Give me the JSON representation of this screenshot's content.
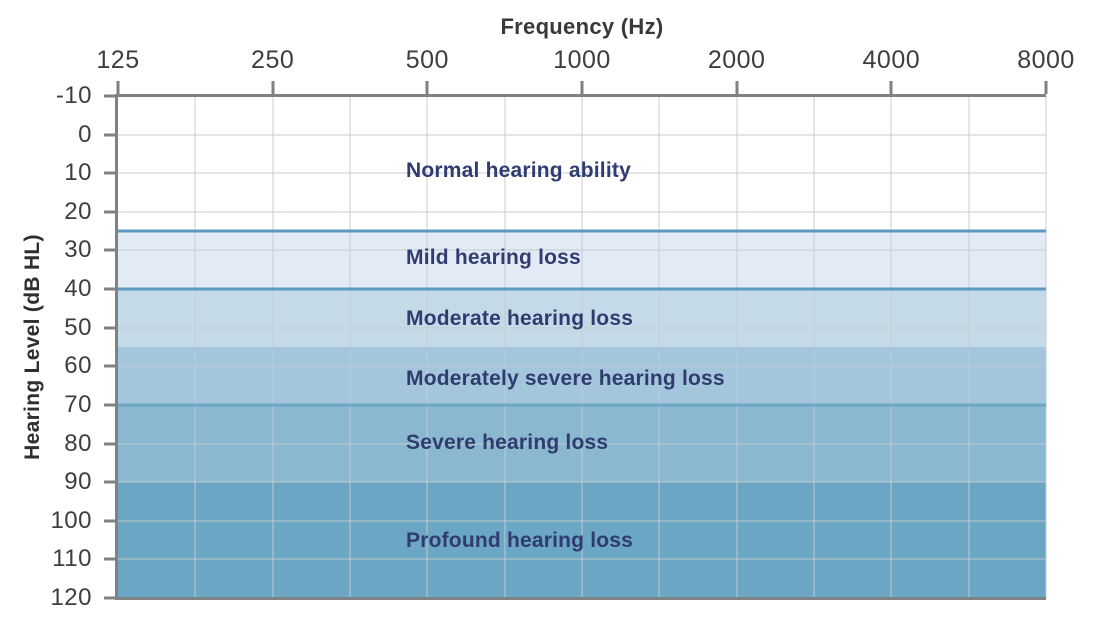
{
  "chart_data": {
    "type": "area",
    "xlabel": "Frequency (Hz)",
    "ylabel": "Hearing Level (dB HL)",
    "x_scale": "logarithmic (octaves), minor gridline every half octave",
    "x_ticks": [
      {
        "label": "125",
        "octave": 0
      },
      {
        "label": "250",
        "octave": 1
      },
      {
        "label": "500",
        "octave": 2
      },
      {
        "label": "1000",
        "octave": 3
      },
      {
        "label": "2000",
        "octave": 4
      },
      {
        "label": "4000",
        "octave": 5
      },
      {
        "label": "8000",
        "octave": 6
      }
    ],
    "x_octaves": 6,
    "x_grid_divisions": 12,
    "y_ticks": [
      "-10",
      "0",
      "10",
      "20",
      "30",
      "40",
      "50",
      "60",
      "70",
      "80",
      "90",
      "100",
      "110",
      "120"
    ],
    "y_range": [
      -10,
      120
    ],
    "grid": true,
    "bands": [
      {
        "label": "Normal hearing ability",
        "from_db": -10,
        "to_db": 25,
        "color": "#ffffff",
        "top_line": null,
        "label_db": 9.4
      },
      {
        "label": "Mild hearing loss",
        "from_db": 25,
        "to_db": 40,
        "color": "#e2ebf5",
        "top_line": "#5b99c0",
        "label_db": 32
      },
      {
        "label": "Moderate hearing loss",
        "from_db": 40,
        "to_db": 55,
        "color": "#c5dae9",
        "top_line": "#5b99c0",
        "label_db": 47.7
      },
      {
        "label": "Moderately severe hearing loss",
        "from_db": 55,
        "to_db": 70,
        "color": "#a4c6dc",
        "top_line": null,
        "label_db": 63.3
      },
      {
        "label": "Severe hearing loss",
        "from_db": 70,
        "to_db": 90,
        "color": "#8ab8d1",
        "top_line": "#6ea7c3",
        "label_db": 79.9
      },
      {
        "label": "Profound hearing loss",
        "from_db": 90,
        "to_db": 120,
        "color": "#6ba6c4",
        "top_line": null,
        "label_db": 105.2
      }
    ],
    "colors": {
      "axis": "#7e8285",
      "grid": "#c4cacf",
      "tick_text": "#3c3e40",
      "axis_title_text": "#37393b",
      "band_label_text": "#303c6f"
    }
  }
}
